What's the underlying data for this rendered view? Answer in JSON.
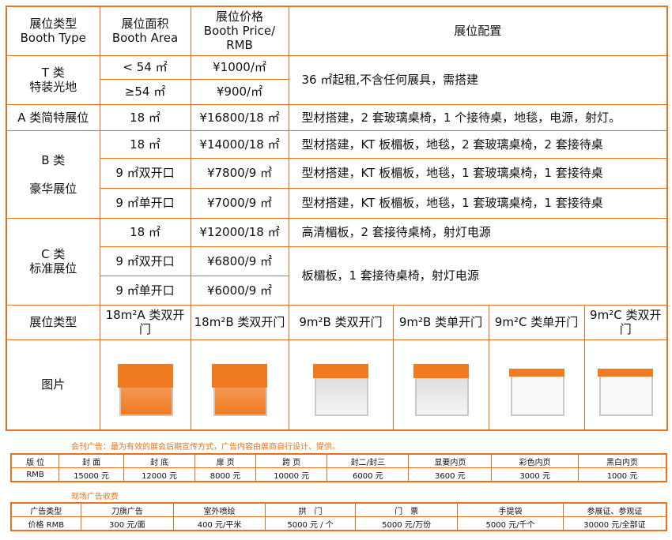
{
  "header": {
    "type": "展位类型\nBooth Type",
    "area": "展位面积\nBooth Area",
    "price": "展位价格\nBooth Price/\nRMB",
    "config": "展位配置"
  },
  "rows": {
    "t_label": "T 类\n特装光地",
    "t1_area": "< 54 ㎡",
    "t1_price": "¥1000/㎡",
    "t2_area": "≥54 ㎡",
    "t2_price": "¥900/㎡",
    "t_config": "36 ㎡起租,不含任何展具，需搭建",
    "a_label": "A 类简特展位",
    "a_area": "18 ㎡",
    "a_price": "¥16800/18 ㎡",
    "a_config": "型材搭建，2 套玻璃桌椅，1 个接待桌，地毯，电源，射灯。",
    "b_label": "B 类\n\n豪华展位",
    "b1_area": "18 ㎡",
    "b1_price": "¥14000/18 ㎡",
    "b1_config": "型材搭建，KT 板楣板，地毯，2 套玻璃桌椅，2 套接待桌",
    "b2_area": "9 ㎡双开口",
    "b2_price": "¥7800/9 ㎡",
    "b2_config": "型材搭建，KT 板楣板，地毯，1 套玻璃桌椅，1 套接待桌",
    "b3_area": "9 ㎡单开口",
    "b3_price": "¥7000/9 ㎡",
    "b3_config": "型材搭建，KT 板楣板，地毯，1 套玻璃桌椅，1 套接待桌",
    "c_label": "C 类\n标准展位",
    "c1_area": "18 ㎡",
    "c1_price": "¥12000/18 ㎡",
    "c1_config": "高清楣板，2 套接待桌椅，射灯电源",
    "c2_area": "9 ㎡双开口",
    "c2_price": "¥6800/9 ㎡",
    "c3_area": "9 ㎡单开口",
    "c3_price": "¥6000/9 ㎡",
    "c23_config": "板楣板，1 套接待桌椅，射灯电源"
  },
  "types": {
    "label": "展位类型",
    "items": [
      "18m²A 类双开门",
      "18m²B 类双开门",
      "9m²B 类双开门",
      "9m²B 类单开门",
      "9m²C 类单开门",
      "9m²C 类双开门"
    ]
  },
  "pictures": {
    "label": "图片"
  },
  "journal": {
    "note": "会刊广告：最为有效的展会后期宣传方式，广告内容由展商自行设计、提供。",
    "headers": [
      "版 位",
      "封 面",
      "封 底",
      "扉 页",
      "跨 页",
      "封二/封三",
      "显要内页",
      "彩色内页",
      "黑白内页"
    ],
    "values": [
      "RMB",
      "15000 元",
      "12000 元",
      "8000 元",
      "10000 元",
      "6000 元",
      "3600 元",
      "3000 元",
      "1000 元"
    ]
  },
  "onsite": {
    "note": "现场广告收费",
    "headers": [
      "广告类型",
      "刀旗广告",
      "室外喷绘",
      "拱　门",
      "门　票",
      "手提袋",
      "参展证、参观证"
    ],
    "values": [
      "价格 RMB",
      "300 元/面",
      "400 元/平米",
      "5000 元 / 个",
      "5000 元/万份",
      "5000 元/千个",
      "30000 元/全部证"
    ]
  },
  "colors": {
    "border": "#e8711c",
    "accent": "#f07a20"
  }
}
